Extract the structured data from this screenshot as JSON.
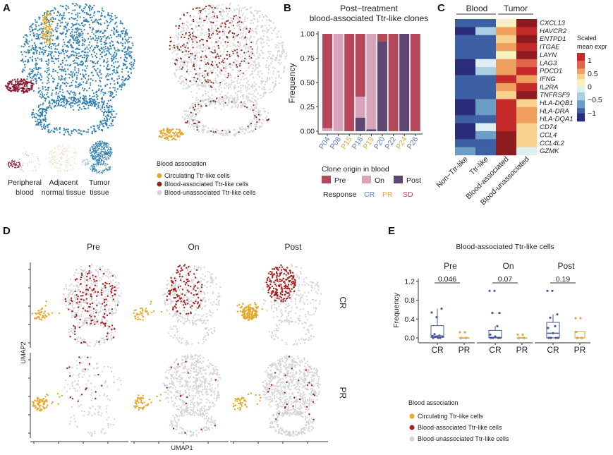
{
  "panel_labels": {
    "a": "A",
    "b": "B",
    "c": "C",
    "d": "D",
    "e": "E"
  },
  "colors": {
    "circulating": "#e3a92c",
    "blood_associated": "#a3221f",
    "blood_unassociated": "#d3d3d8",
    "tumor_blue": "#2f7fb0",
    "pb_red": "#8c1d35",
    "pre": "#b5485b",
    "on": "#d9a4b9",
    "post": "#5f4674",
    "CR": "#5b7fb5",
    "PR": "#e0a940",
    "SD": "#b5474a",
    "box_cr": "#4a5aa0",
    "box_pr": "#e0a940"
  },
  "chart_data": [
    {
      "panel": "A",
      "type": "scatter",
      "thumbnails": [
        {
          "label_1": "Peripheral",
          "label_2": "blood"
        },
        {
          "label_1": "Adjacent",
          "label_2": "normal tissue"
        },
        {
          "label_1": "Tumor",
          "label_2": "tissue"
        }
      ],
      "legend": {
        "title": "Blood association",
        "items": [
          "Circulating Ttr-like cells",
          "Blood-associated Ttr-like cells",
          "Blood-unassociated Ttr-like cells"
        ]
      }
    },
    {
      "panel": "B",
      "type": "bar",
      "stacked": true,
      "title_1": "Post−treatment",
      "title_2": "blood-associated Ttr-like clones",
      "ylabel": "Frequency",
      "ylim": [
        0,
        1
      ],
      "yticks": [
        "0.00",
        "0.25",
        "0.50",
        "0.75",
        "1.00"
      ],
      "categories": [
        "P04",
        "P08",
        "P15",
        "P18",
        "P19",
        "P20",
        "P22",
        "P24",
        "P26"
      ],
      "category_response": [
        "CR",
        "CR",
        "PR",
        "CR",
        "PR",
        "CR",
        "CR",
        "PR",
        "CR"
      ],
      "series": [
        {
          "name": "Post",
          "values": [
            0,
            0,
            0,
            0.14,
            0.02,
            0.92,
            0,
            1,
            0
          ]
        },
        {
          "name": "On",
          "values": [
            0.03,
            1,
            0,
            0.215,
            0.98,
            0,
            0,
            0,
            0
          ]
        },
        {
          "name": "Pre",
          "values": [
            0.97,
            0,
            1,
            0.645,
            0,
            0.08,
            1,
            0,
            1
          ]
        }
      ],
      "legend": {
        "title": "Clone origin in blood",
        "items": [
          "Pre",
          "On",
          "Post"
        ],
        "response_label": "Response",
        "responses": [
          "CR",
          "PR",
          "SD"
        ]
      }
    },
    {
      "panel": "C",
      "type": "heatmap",
      "group_headers": [
        "Blood",
        "Tumor"
      ],
      "columns": [
        "Non−Ttr-like",
        "Ttr-like",
        "Blood-associated",
        "Blood-unassociated"
      ],
      "rows": [
        "CXCL13",
        "HAVCR2",
        "ENTPD1",
        "ITGAE",
        "LAYN",
        "LAG3",
        "PDCD1",
        "IFNG",
        "IL2RA",
        "TNFRSF9",
        "HLA-DQB1",
        "HLA-DRA",
        "HLA-DQA1",
        "CD74",
        "CCL4",
        "CCL4L2",
        "GZMK"
      ],
      "values": [
        [
          -0.8,
          -0.8,
          0.1,
          1.3
        ],
        [
          -1.3,
          -0.4,
          0.5,
          1.0
        ],
        [
          -1.0,
          -0.8,
          0.3,
          1.3
        ],
        [
          -1.0,
          -0.8,
          0.5,
          1.0
        ],
        [
          -0.8,
          -0.8,
          0.1,
          1.3
        ],
        [
          -1.3,
          -0.2,
          0.5,
          0.8
        ],
        [
          -1.3,
          -0.4,
          0.5,
          1.0
        ],
        [
          -1.0,
          -0.8,
          1.0,
          0.5
        ],
        [
          -0.8,
          -1.0,
          0.5,
          1.0
        ],
        [
          -1.0,
          -0.8,
          0.3,
          1.3
        ],
        [
          -1.3,
          -0.5,
          1.0,
          0.3
        ],
        [
          -1.3,
          -0.5,
          1.0,
          0.5
        ],
        [
          -1.0,
          -1.0,
          1.0,
          0.5
        ],
        [
          -1.3,
          -0.2,
          1.0,
          0.3
        ],
        [
          -1.3,
          -0.5,
          1.3,
          0.3
        ],
        [
          -1.0,
          -0.8,
          1.3,
          0.3
        ],
        [
          -0.5,
          -0.8,
          1.3,
          -0.2
        ]
      ],
      "legend": {
        "title_1": "Scaled",
        "title_2": "mean expr",
        "ticks": [
          "1",
          "0.5",
          "0",
          "−0.5",
          "−1"
        ],
        "tick_values": [
          1,
          0.5,
          0,
          -0.5,
          -1
        ],
        "range": [
          -1.3,
          1.3
        ]
      }
    },
    {
      "panel": "D",
      "type": "scatter",
      "columns": [
        "Pre",
        "On",
        "Post"
      ],
      "rows": [
        "CR",
        "PR"
      ],
      "xlabel": "UMAP1",
      "ylabel": "UMAP2"
    },
    {
      "panel": "E",
      "type": "box",
      "title": "Blood-associated Ttr-like cells",
      "ylabel": "Frequency",
      "ylim": [
        0,
        1.2
      ],
      "yticks": [
        "0.0",
        "0.4",
        "0.8",
        "1.2"
      ],
      "facets": [
        {
          "name": "Pre",
          "p_value": "0.046",
          "groups": [
            {
              "name": "CR",
              "points": [
                0.54,
                0.44,
                0.62,
                0.08,
                0.05,
                0.04,
                0.03,
                0.03,
                0.02,
                0,
                0,
                0
              ],
              "q1": 0.01,
              "median": 0.04,
              "q3": 0.26,
              "whisker_low": 0,
              "whisker_high": 0.62
            },
            {
              "name": "PR",
              "points": [
                0.12,
                0.12,
                0,
                0,
                0,
                0
              ],
              "q1": 0,
              "median": 0,
              "q3": 0,
              "whisker_low": 0,
              "whisker_high": 0
            }
          ]
        },
        {
          "name": "On",
          "p_value": "0.07",
          "groups": [
            {
              "name": "CR",
              "points": [
                1,
                1,
                0.53,
                0.53,
                0.25,
                0.07,
                0.03,
                0,
                0,
                0,
                0
              ],
              "q1": 0,
              "median": 0.01,
              "q3": 0.16,
              "whisker_low": 0,
              "whisker_high": 0.25
            },
            {
              "name": "PR",
              "points": [
                0.07,
                0.07,
                0,
                0,
                0,
                0
              ],
              "q1": 0,
              "median": 0,
              "q3": 0,
              "whisker_low": 0,
              "whisker_high": 0
            }
          ]
        },
        {
          "name": "Post",
          "p_value": "0.19",
          "groups": [
            {
              "name": "CR",
              "points": [
                1,
                1,
                0.5,
                0.43,
                0.25,
                0.21,
                0.1,
                0,
                0,
                0,
                0
              ],
              "q1": 0,
              "median": 0.1,
              "q3": 0.33,
              "whisker_low": 0,
              "whisker_high": 0.5
            },
            {
              "name": "PR",
              "points": [
                0.42,
                0.42,
                0.13,
                0,
                0,
                0,
                0
              ],
              "q1": 0,
              "median": 0,
              "q3": 0.14,
              "whisker_low": 0,
              "whisker_high": 0.14
            }
          ]
        }
      ],
      "legend": {
        "title": "Blood association",
        "items": [
          "Circulating Ttr-like cells",
          "Blood-associated Ttr-like cells",
          "Blood-unassociated Ttr-like cells"
        ]
      }
    }
  ]
}
